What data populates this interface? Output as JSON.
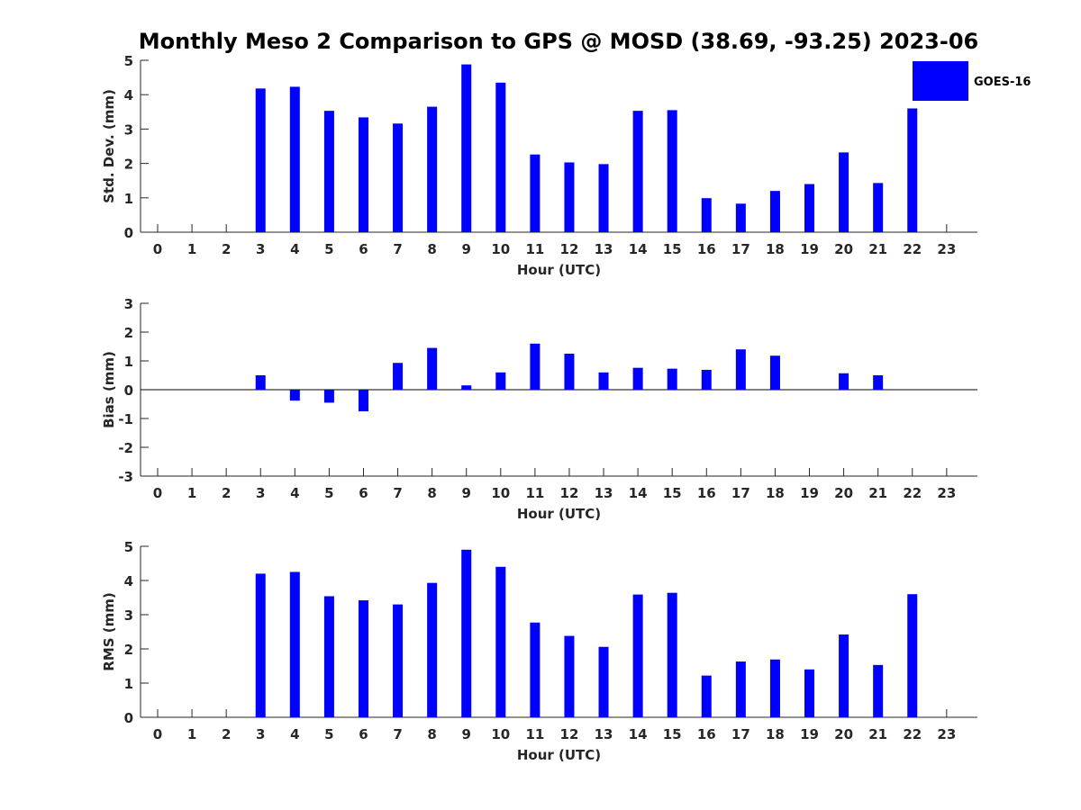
{
  "title": "Monthly Meso 2 Comparison to GPS @ MOSD (38.69, -93.25) 2023-06",
  "legend": {
    "label": "GOES-16",
    "color": "#0000ff"
  },
  "chart_data": [
    {
      "type": "bar",
      "xlabel": "Hour (UTC)",
      "ylabel": "Std. Dev. (mm)",
      "ylim": [
        0,
        5
      ],
      "yticks": [
        0,
        1,
        2,
        3,
        4,
        5
      ],
      "categories": [
        "0",
        "1",
        "2",
        "3",
        "4",
        "5",
        "6",
        "7",
        "8",
        "9",
        "10",
        "11",
        "12",
        "13",
        "14",
        "15",
        "16",
        "17",
        "18",
        "19",
        "20",
        "21",
        "22",
        "23"
      ],
      "series": [
        {
          "name": "GOES-16",
          "values": [
            null,
            null,
            null,
            4.18,
            4.23,
            3.53,
            3.34,
            3.16,
            3.65,
            4.88,
            4.35,
            2.26,
            2.03,
            1.98,
            3.53,
            3.55,
            0.99,
            0.83,
            1.2,
            1.4,
            2.32,
            1.43,
            3.6,
            null
          ]
        }
      ],
      "grid": false,
      "legend_position": "top-right"
    },
    {
      "type": "bar",
      "xlabel": "Hour (UTC)",
      "ylabel": "Bias (mm)",
      "ylim": [
        -3,
        3
      ],
      "yticks": [
        -3,
        -2,
        -1,
        0,
        1,
        2,
        3
      ],
      "categories": [
        "0",
        "1",
        "2",
        "3",
        "4",
        "5",
        "6",
        "7",
        "8",
        "9",
        "10",
        "11",
        "12",
        "13",
        "14",
        "15",
        "16",
        "17",
        "18",
        "19",
        "20",
        "21",
        "22",
        "23"
      ],
      "series": [
        {
          "name": "GOES-16",
          "values": [
            null,
            null,
            null,
            0.5,
            -0.38,
            -0.45,
            -0.75,
            0.93,
            1.45,
            0.15,
            0.6,
            1.6,
            1.25,
            0.6,
            0.76,
            0.73,
            0.69,
            1.4,
            1.18,
            0.0,
            0.57,
            0.5,
            0.0,
            null
          ]
        }
      ],
      "grid": false
    },
    {
      "type": "bar",
      "xlabel": "Hour (UTC)",
      "ylabel": "RMS (mm)",
      "ylim": [
        0,
        5
      ],
      "yticks": [
        0,
        1,
        2,
        3,
        4,
        5
      ],
      "categories": [
        "0",
        "1",
        "2",
        "3",
        "4",
        "5",
        "6",
        "7",
        "8",
        "9",
        "10",
        "11",
        "12",
        "13",
        "14",
        "15",
        "16",
        "17",
        "18",
        "19",
        "20",
        "21",
        "22",
        "23"
      ],
      "series": [
        {
          "name": "GOES-16",
          "values": [
            null,
            null,
            null,
            4.2,
            4.25,
            3.54,
            3.42,
            3.3,
            3.93,
            4.9,
            4.4,
            2.77,
            2.38,
            2.06,
            3.59,
            3.64,
            1.22,
            1.63,
            1.69,
            1.4,
            2.42,
            1.53,
            3.6,
            null
          ]
        }
      ],
      "grid": false
    }
  ]
}
